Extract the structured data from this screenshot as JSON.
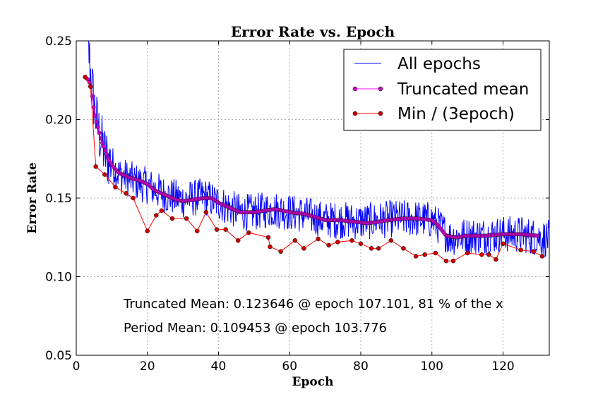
{
  "chart_data": {
    "type": "line",
    "title": "Error Rate vs. Epoch",
    "xlabel": "Epoch",
    "ylabel": "Error Rate",
    "xlim": [
      0,
      133
    ],
    "ylim": [
      0.05,
      0.25
    ],
    "xticks": [
      "0",
      "20",
      "40",
      "60",
      "80",
      "100",
      "120"
    ],
    "yticks": [
      "0.05",
      "0.10",
      "0.15",
      "0.20",
      "0.25"
    ],
    "grid": true,
    "legend_position": "top-right",
    "annotations": [
      "Truncated Mean: 0.123646 @ epoch 107.101, 81 % of the x",
      "Period Mean: 0.109453 @ epoch 103.776"
    ],
    "series": [
      {
        "name": "All epochs",
        "color": "#0000ff",
        "style": "line",
        "anchors": [
          [
            2,
            0.28
          ],
          [
            3,
            0.26
          ],
          [
            4,
            0.23
          ],
          [
            5,
            0.21
          ],
          [
            6,
            0.195
          ],
          [
            8,
            0.178
          ],
          [
            10,
            0.172
          ],
          [
            12,
            0.165
          ],
          [
            16,
            0.161
          ],
          [
            20,
            0.158
          ],
          [
            25,
            0.152
          ],
          [
            30,
            0.149
          ],
          [
            36,
            0.151
          ],
          [
            40,
            0.147
          ],
          [
            46,
            0.141
          ],
          [
            50,
            0.141
          ],
          [
            55,
            0.143
          ],
          [
            60,
            0.141
          ],
          [
            65,
            0.139
          ],
          [
            70,
            0.136
          ],
          [
            75,
            0.136
          ],
          [
            80,
            0.135
          ],
          [
            85,
            0.136
          ],
          [
            90,
            0.137
          ],
          [
            95,
            0.137
          ],
          [
            100,
            0.136
          ],
          [
            103,
            0.13
          ],
          [
            105,
            0.125
          ],
          [
            110,
            0.126
          ],
          [
            115,
            0.126
          ],
          [
            120,
            0.127
          ],
          [
            125,
            0.127
          ],
          [
            130,
            0.125
          ],
          [
            133,
            0.124
          ]
        ],
        "noise_amplitude": 0.012
      },
      {
        "name": "Truncated mean",
        "color": "#ff00ff",
        "marker_color": "#cc00cc",
        "style": "line-marker",
        "anchors": [
          [
            2.5,
            0.227
          ],
          [
            3.5,
            0.225
          ],
          [
            4.2,
            0.22
          ],
          [
            5,
            0.206
          ],
          [
            5.5,
            0.2
          ],
          [
            6,
            0.196
          ],
          [
            7,
            0.187
          ],
          [
            8,
            0.181
          ],
          [
            9,
            0.175
          ],
          [
            10,
            0.171
          ],
          [
            12,
            0.166
          ],
          [
            15,
            0.163
          ],
          [
            18,
            0.161
          ],
          [
            20,
            0.159
          ],
          [
            22,
            0.155
          ],
          [
            25,
            0.152
          ],
          [
            28,
            0.149
          ],
          [
            30,
            0.148
          ],
          [
            33,
            0.149
          ],
          [
            36,
            0.15
          ],
          [
            38,
            0.15
          ],
          [
            40,
            0.147
          ],
          [
            43,
            0.144
          ],
          [
            46,
            0.141
          ],
          [
            50,
            0.141
          ],
          [
            53,
            0.142
          ],
          [
            56,
            0.143
          ],
          [
            60,
            0.141
          ],
          [
            64,
            0.14
          ],
          [
            67,
            0.138
          ],
          [
            70,
            0.136
          ],
          [
            74,
            0.136
          ],
          [
            78,
            0.135
          ],
          [
            82,
            0.134
          ],
          [
            85,
            0.135
          ],
          [
            88,
            0.136
          ],
          [
            92,
            0.137
          ],
          [
            96,
            0.137
          ],
          [
            100,
            0.136
          ],
          [
            102,
            0.132
          ],
          [
            104,
            0.126
          ],
          [
            107,
            0.125
          ],
          [
            110,
            0.126
          ],
          [
            115,
            0.126
          ],
          [
            120,
            0.127
          ],
          [
            125,
            0.127
          ],
          [
            130,
            0.126
          ]
        ],
        "marker_every": 0.4
      },
      {
        "name": "Min / (3epoch)",
        "color": "#ff0000",
        "marker_color": "#cc0000",
        "style": "line-marker",
        "points": [
          [
            2.5,
            0.227
          ],
          [
            4,
            0.221
          ],
          [
            5.5,
            0.17
          ],
          [
            8,
            0.165
          ],
          [
            11,
            0.157
          ],
          [
            14,
            0.153
          ],
          [
            16,
            0.15
          ],
          [
            20,
            0.129
          ],
          [
            22.5,
            0.139
          ],
          [
            24,
            0.142
          ],
          [
            27,
            0.137
          ],
          [
            31,
            0.137
          ],
          [
            34,
            0.129
          ],
          [
            36.5,
            0.141
          ],
          [
            39.5,
            0.13
          ],
          [
            42,
            0.13
          ],
          [
            45.5,
            0.123
          ],
          [
            48.5,
            0.128
          ],
          [
            54,
            0.125
          ],
          [
            54.5,
            0.119
          ],
          [
            57.5,
            0.116
          ],
          [
            61.5,
            0.123
          ],
          [
            64,
            0.118
          ],
          [
            68,
            0.124
          ],
          [
            71,
            0.12
          ],
          [
            73.5,
            0.122
          ],
          [
            77.5,
            0.123
          ],
          [
            80,
            0.121
          ],
          [
            83,
            0.118
          ],
          [
            85,
            0.118
          ],
          [
            88.5,
            0.123
          ],
          [
            92,
            0.118
          ],
          [
            95.5,
            0.113
          ],
          [
            98,
            0.114
          ],
          [
            101,
            0.115
          ],
          [
            104,
            0.11
          ],
          [
            106,
            0.11
          ],
          [
            110,
            0.115
          ],
          [
            114,
            0.114
          ],
          [
            116,
            0.114
          ],
          [
            118,
            0.111
          ],
          [
            120,
            0.121
          ],
          [
            125,
            0.117
          ],
          [
            128.5,
            0.116
          ],
          [
            131,
            0.113
          ]
        ]
      }
    ]
  }
}
